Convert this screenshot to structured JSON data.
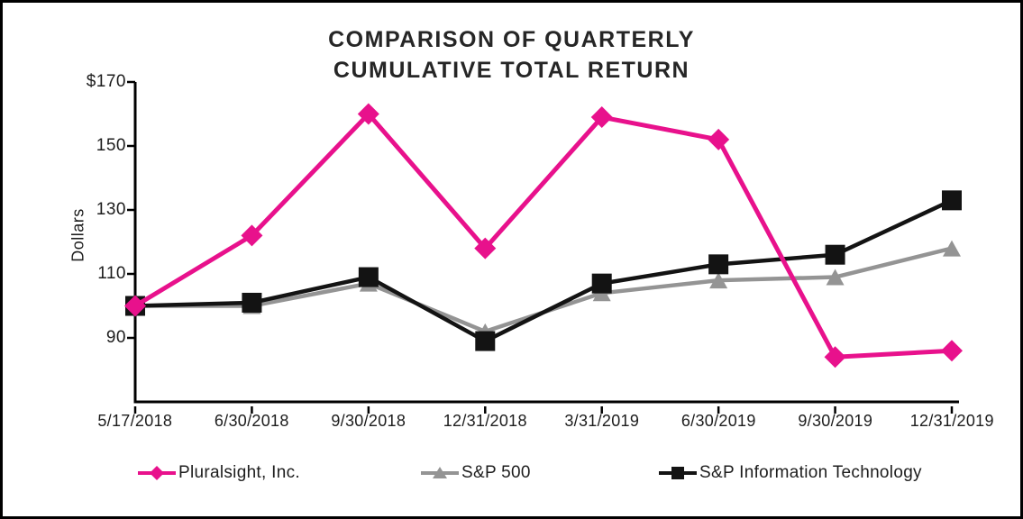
{
  "frame": {
    "background_color": "#ffffff",
    "border_color": "#000000"
  },
  "chart_data": {
    "type": "line",
    "title": "COMPARISON OF QUARTERLY CUMULATIVE TOTAL RETURN",
    "title_lines": [
      "COMPARISON OF QUARTERLY",
      "CUMULATIVE TOTAL RETURN"
    ],
    "ylabel": "Dollars",
    "xlabel": "",
    "grid": false,
    "legend_position": "bottom",
    "ylim": [
      70,
      170
    ],
    "y_ticks": [
      {
        "label": "$170",
        "value": 170
      },
      {
        "label": "150",
        "value": 150
      },
      {
        "label": "130",
        "value": 130
      },
      {
        "label": "110",
        "value": 110
      },
      {
        "label": "90",
        "value": 90
      }
    ],
    "categories": [
      "5/17/2018",
      "6/30/2018",
      "9/30/2018",
      "12/31/2018",
      "3/31/2019",
      "6/30/2019",
      "9/30/2019",
      "12/31/2019"
    ],
    "axis_color": "#000000",
    "series": [
      {
        "name": "Pluralsight, Inc.",
        "color": "#e8118c",
        "marker": "diamond",
        "line_width": 5,
        "zorder": 3,
        "values": [
          100,
          122,
          160,
          118,
          159,
          152,
          84,
          86
        ]
      },
      {
        "name": "S&P 500",
        "color": "#949494",
        "marker": "triangle",
        "line_width": 4.5,
        "zorder": 1,
        "values": [
          100,
          100,
          107,
          92,
          104,
          108,
          109,
          118
        ]
      },
      {
        "name": "S&P Information Technology",
        "color": "#131313",
        "marker": "square",
        "line_width": 4.5,
        "zorder": 2,
        "values": [
          100,
          101,
          109,
          89,
          107,
          113,
          116,
          133
        ]
      }
    ]
  }
}
